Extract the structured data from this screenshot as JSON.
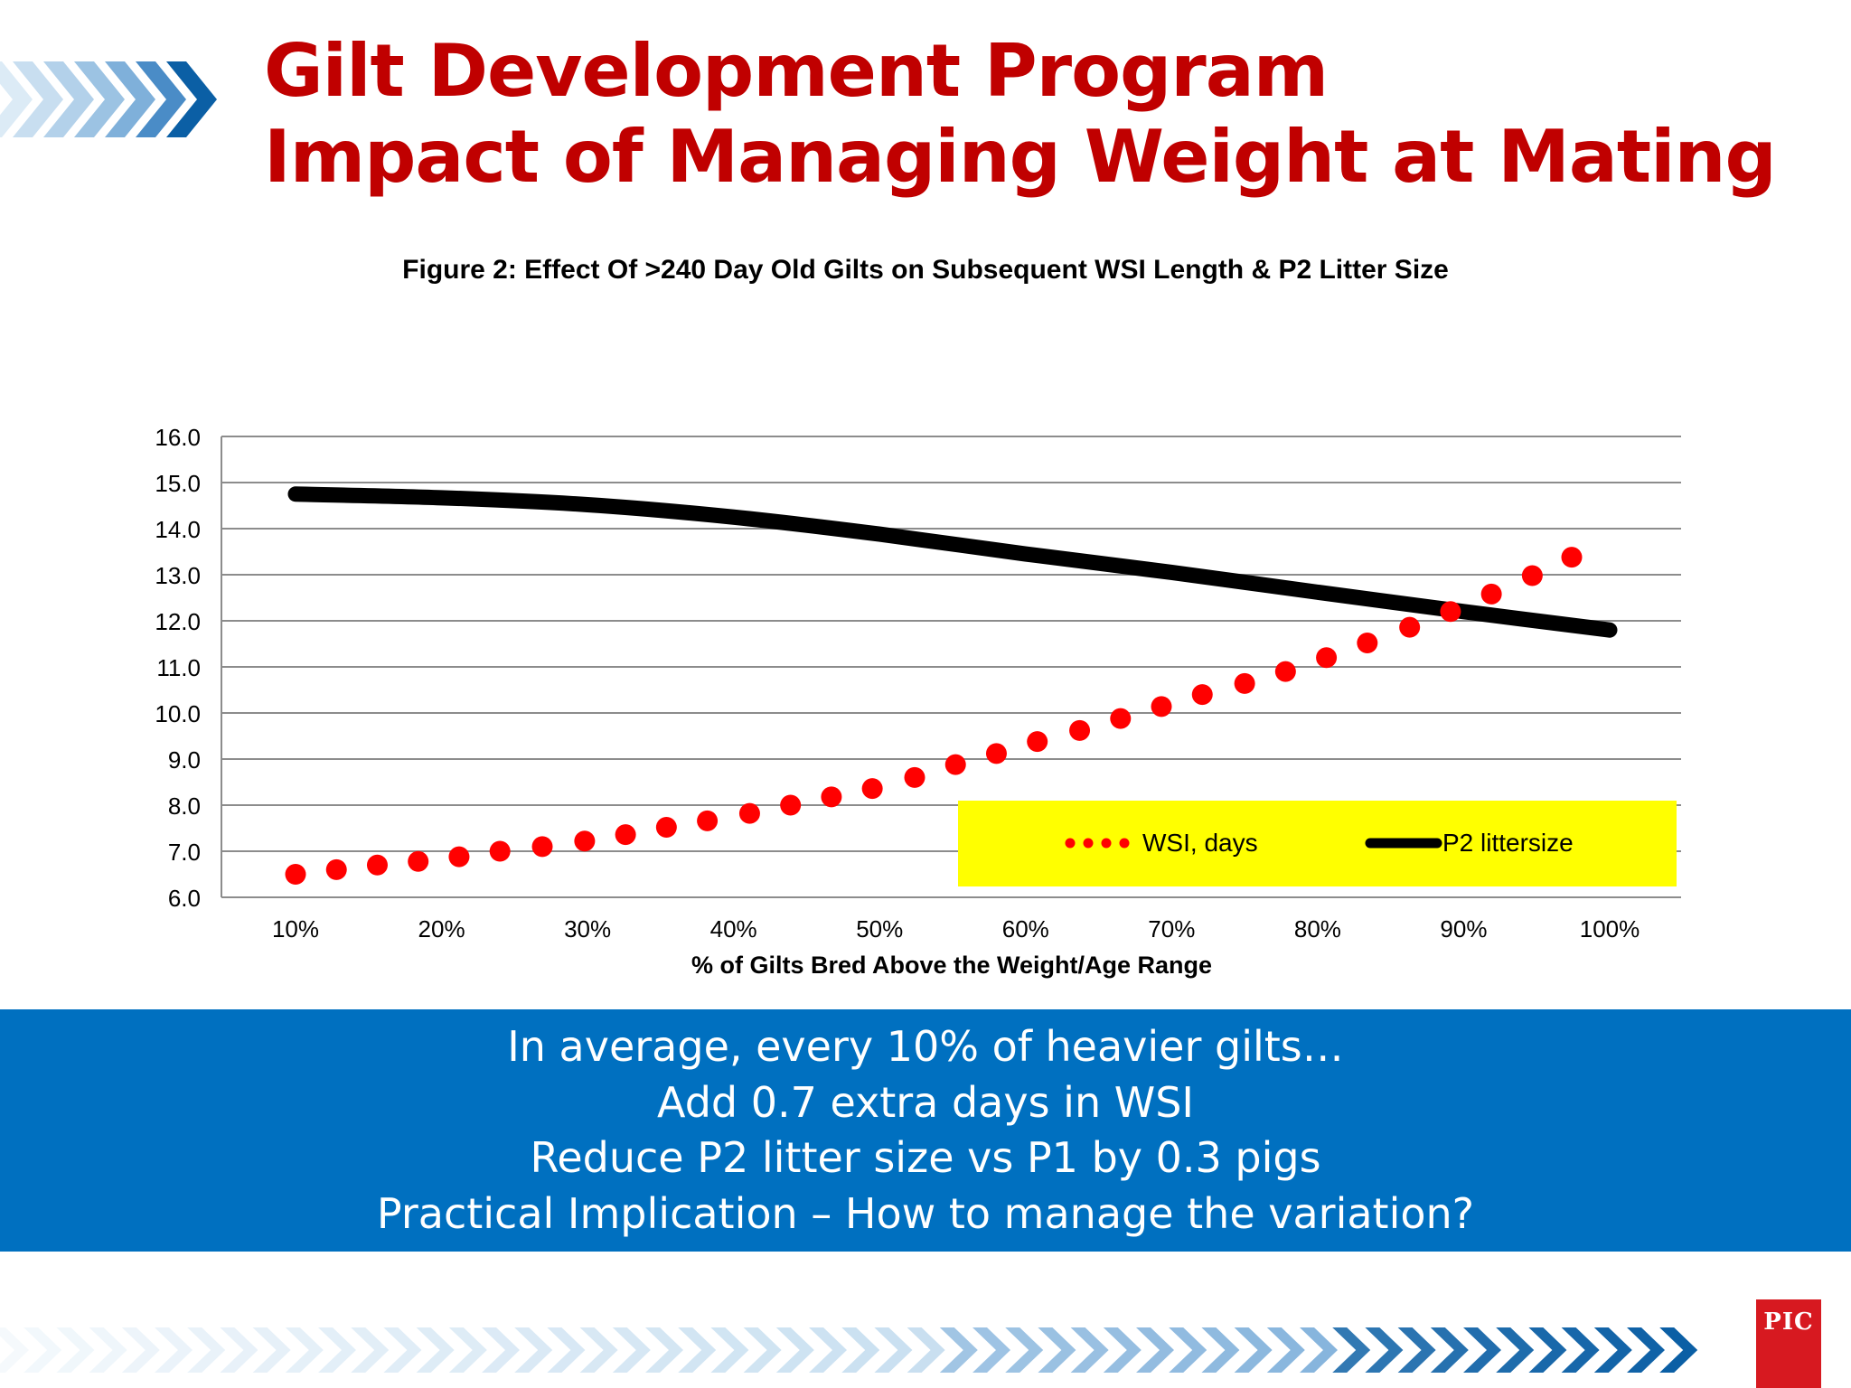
{
  "slide": {
    "title_lines": [
      "Gilt Development Program",
      "Impact of Managing Weight at Mating"
    ],
    "takeaways": [
      "In average, every 10% of heavier gilts…",
      "Add 0.7 extra days in WSI",
      "Reduce P2 litter size vs P1 by 0.3 pigs",
      "Practical Implication – How to manage the variation?"
    ],
    "logo_text": "PIC"
  },
  "colors": {
    "title": "#C00000",
    "band": "#0070C0",
    "wsi": "#FF0000",
    "p2": "#000000",
    "legend_bg": "#FFFF00",
    "logo_bg": "#D71920",
    "chevron_dark": "#0B5FA5",
    "chevron_light": "#A9CDE8",
    "gridline": "#8C8C8C"
  },
  "icons": {
    "header_chevrons": "double-chevron-arrows-icon",
    "footer_chevrons": "chevron-strip-icon",
    "logo": "pic-logo-icon"
  },
  "chart_data": {
    "type": "line",
    "title": "Figure 2: Effect Of >240 Day Old Gilts on Subsequent WSI Length & P2 Litter Size",
    "xlabel": "% of Gilts Bred Above the Weight/Age Range",
    "ylabel": "",
    "x_tick_labels": [
      "10%",
      "20%",
      "30%",
      "40%",
      "50%",
      "60%",
      "70%",
      "80%",
      "90%",
      "100%"
    ],
    "xlim": [
      10,
      100
    ],
    "ylim": [
      6.0,
      16.0
    ],
    "y_tick_labels": [
      "6.0",
      "7.0",
      "8.0",
      "9.0",
      "10.0",
      "11.0",
      "12.0",
      "13.0",
      "14.0",
      "15.0",
      "16.0"
    ],
    "grid": true,
    "legend_position": "bottom-right",
    "series": [
      {
        "name": "WSI, days",
        "style": "dots",
        "x": [
          10,
          12.8,
          15.6,
          18.4,
          21.2,
          24,
          26.9,
          29.8,
          32.6,
          35.4,
          38.2,
          41.1,
          43.9,
          46.7,
          49.5,
          52.4,
          55.2,
          58,
          60.8,
          63.7,
          66.5,
          69.3,
          72.1,
          75,
          77.8,
          80.6,
          83.4,
          86.3,
          89.1,
          91.9,
          94.7,
          97.4
        ],
        "y": [
          6.5,
          6.6,
          6.7,
          6.78,
          6.88,
          7.0,
          7.1,
          7.22,
          7.36,
          7.52,
          7.66,
          7.82,
          8.0,
          8.18,
          8.36,
          8.6,
          8.88,
          9.12,
          9.38,
          9.62,
          9.88,
          10.14,
          10.4,
          10.64,
          10.9,
          11.2,
          11.52,
          11.86,
          12.2,
          12.58,
          12.98,
          13.38
        ]
      },
      {
        "name": "P2 littersize",
        "style": "line",
        "x": [
          10,
          20,
          30,
          40,
          50,
          60,
          70,
          80,
          90,
          100
        ],
        "y": [
          14.75,
          14.67,
          14.52,
          14.25,
          13.88,
          13.45,
          13.05,
          12.62,
          12.2,
          11.8
        ]
      }
    ]
  }
}
